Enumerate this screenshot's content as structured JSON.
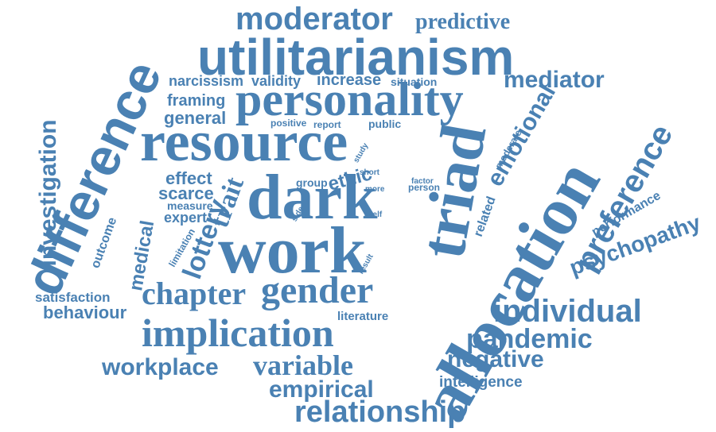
{
  "colors": {
    "word": "#4a81b3",
    "background": "#ffffff"
  },
  "words": {
    "moderator": "moderator",
    "predictive": "predictive",
    "utilitarianism": "utilitarianism",
    "narcissism": "narcissism",
    "validity": "validity",
    "increase": "increase",
    "situation": "situation",
    "mediator": "mediator",
    "personality": "personality",
    "framing": "framing",
    "general": "general",
    "positive": "positive",
    "report": "report",
    "public": "public",
    "investigation": "investigation",
    "difference": "difference",
    "resource": "resource",
    "emotional": "emotional",
    "moderate": "moderate",
    "study": "study",
    "effect": "effect",
    "scarce": "scarce",
    "measure": "measure",
    "expert": "expert",
    "trait": "trait",
    "group": "group",
    "ethic": "ethic",
    "short": "short",
    "more": "more",
    "factor": "factor",
    "person": "person",
    "dark": "dark",
    "triad": "triad",
    "related": "related",
    "preference": "preference",
    "performance": "performance",
    "psychopathy": "psychopathy",
    "outcome": "outcome",
    "limitation": "limitation",
    "lottery": "lottery",
    "medical": "medical",
    "side": "side",
    "self": "self",
    "result": "result",
    "work": "work",
    "allocation": "allocation",
    "satisfaction": "satisfaction",
    "behaviour": "behaviour",
    "chapter": "chapter",
    "gender": "gender",
    "individual": "individual",
    "implication": "implication",
    "literature": "literature",
    "pandemic": "pandemic",
    "workplace": "workplace",
    "variable": "variable",
    "negative": "negative",
    "empirical": "empirical",
    "intelligence": "intelligence",
    "relationship": "relationship"
  }
}
